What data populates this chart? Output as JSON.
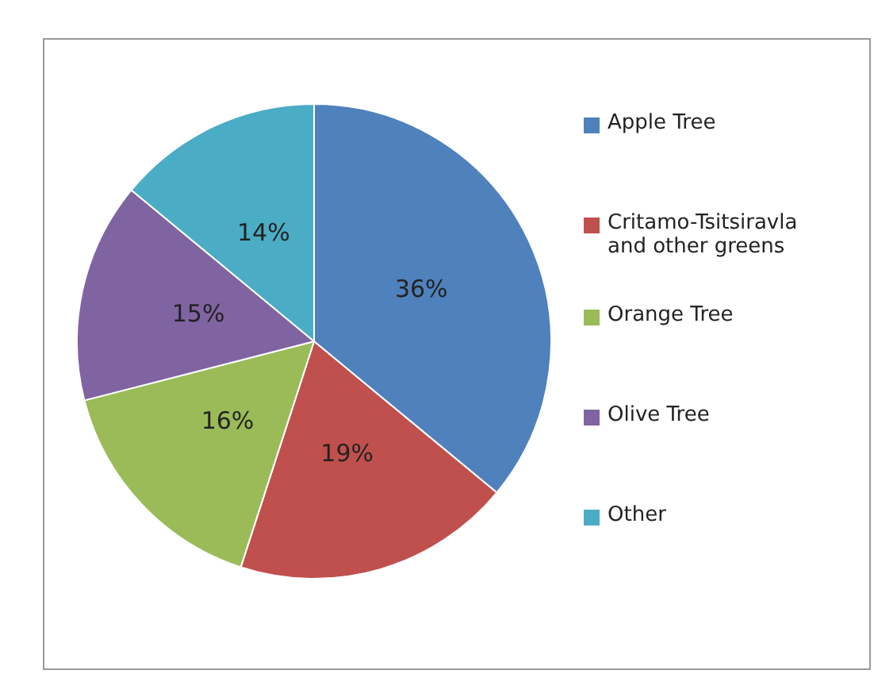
{
  "chart_data": {
    "type": "pie",
    "categories": [
      "Apple Tree",
      "Critamo-Tsitsiravla and other greens",
      "Orange Tree",
      "Olive Tree",
      "Other"
    ],
    "values": [
      36,
      19,
      16,
      15,
      14
    ],
    "colors": [
      "#4f81bd",
      "#c0504d",
      "#9bbb59",
      "#8064a2",
      "#4bacc6"
    ],
    "value_labels": [
      "36%",
      "19%",
      "16%",
      "15%",
      "14%"
    ],
    "legend": "right"
  }
}
